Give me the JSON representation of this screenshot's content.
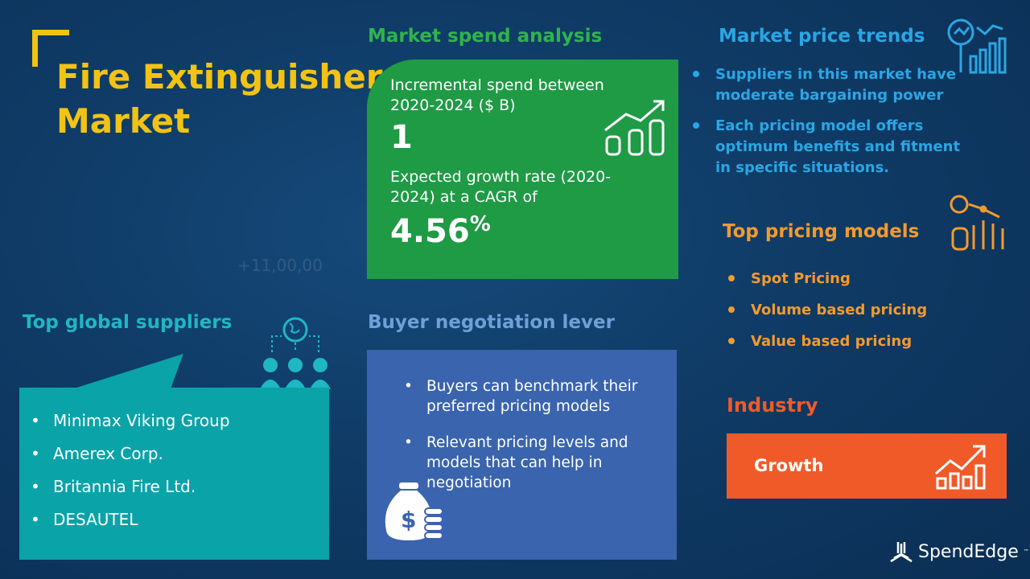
{
  "background_watermark": "+11,00,00",
  "title": {
    "line1": "Fire Extinguisher",
    "line2": "Market"
  },
  "market_spend": {
    "heading": "Market spend analysis",
    "incremental_label": "Incremental spend between 2020-2024 ($ B)",
    "incremental_value": "1",
    "growth_label": "Expected growth rate (2020-2024) at a CAGR of",
    "growth_value": "4.56",
    "growth_unit": "%"
  },
  "price_trends": {
    "heading": "Market price trends",
    "items": [
      "Suppliers in this market have moderate bargaining power",
      "Each pricing model offers optimum benefits and fitment in specific situations."
    ]
  },
  "pricing_models": {
    "heading": "Top pricing models",
    "items": [
      "Spot Pricing",
      "Volume based pricing",
      "Value based pricing"
    ]
  },
  "industry": {
    "heading": "Industry",
    "value": "Growth"
  },
  "suppliers": {
    "heading": "Top global suppliers",
    "items": [
      "Minimax Viking Group",
      "Amerex Corp.",
      "Britannia Fire Ltd.",
      "DESAUTEL"
    ]
  },
  "buyer": {
    "heading": "Buyer negotiation lever",
    "items": [
      "Buyers can benchmark their preferred pricing models",
      "Relevant pricing  levels and models that can help in negotiation"
    ]
  },
  "brand": {
    "name": "SpendEdge",
    "tm": "™"
  },
  "colors": {
    "background": "#0f3b66",
    "title": "#f2c314",
    "green": "#1f9a45",
    "teal": "#0aa3a8",
    "blue_box": "#3a64ad",
    "orange": "#f05a28",
    "price_blue": "#2aa6e4",
    "pricing_orange": "#f29a2e"
  }
}
